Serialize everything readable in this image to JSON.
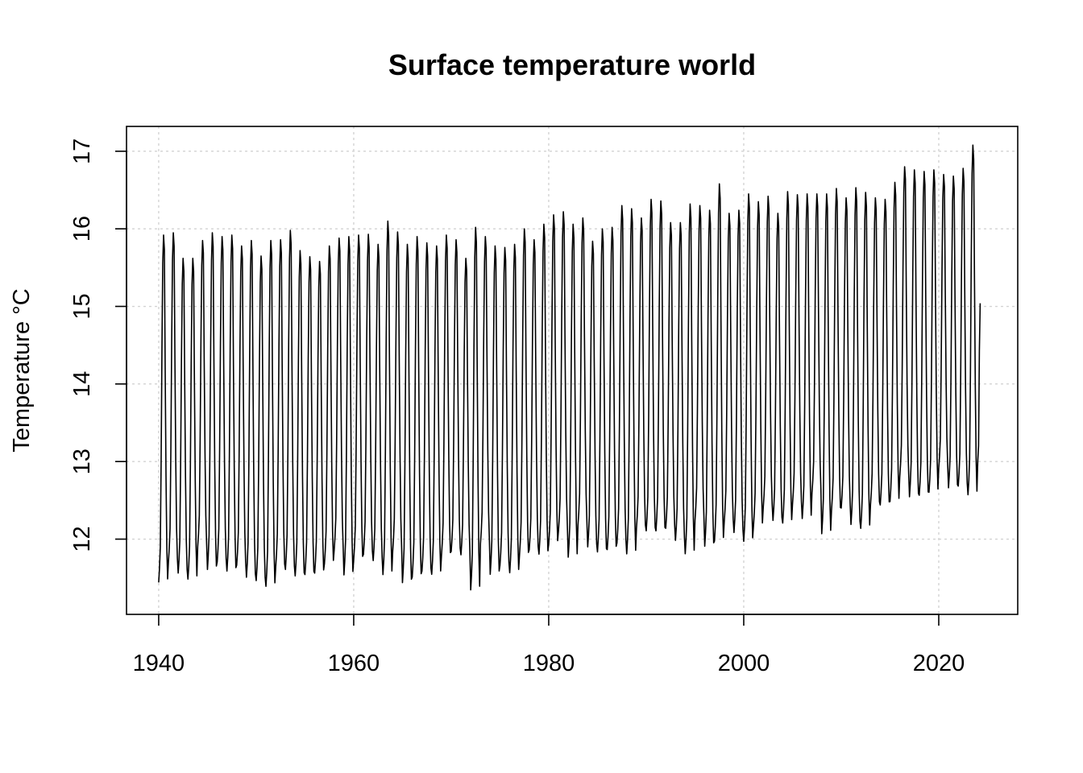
{
  "chart_data": {
    "type": "line",
    "title": "Surface temperature world",
    "xlabel": "",
    "ylabel": "Temperature °C",
    "xlim": [
      1936.7,
      2028.1
    ],
    "ylim": [
      11.03,
      17.32
    ],
    "x_ticks": [
      1940,
      1960,
      1980,
      2000,
      2020
    ],
    "y_ticks": [
      12,
      13,
      14,
      15,
      16,
      17
    ],
    "grid": true,
    "legend": "none",
    "series_color": "#000000",
    "annual": {
      "year": [
        1940,
        1941,
        1942,
        1943,
        1944,
        1945,
        1946,
        1947,
        1948,
        1949,
        1950,
        1951,
        1952,
        1953,
        1954,
        1955,
        1956,
        1957,
        1958,
        1959,
        1960,
        1961,
        1962,
        1963,
        1964,
        1965,
        1966,
        1967,
        1968,
        1969,
        1970,
        1971,
        1972,
        1973,
        1974,
        1975,
        1976,
        1977,
        1978,
        1979,
        1980,
        1981,
        1982,
        1983,
        1984,
        1985,
        1986,
        1987,
        1988,
        1989,
        1990,
        1991,
        1992,
        1993,
        1994,
        1995,
        1996,
        1997,
        1998,
        1999,
        2000,
        2001,
        2002,
        2003,
        2004,
        2005,
        2006,
        2007,
        2008,
        2009,
        2010,
        2011,
        2012,
        2013,
        2014,
        2015,
        2016,
        2017,
        2018,
        2019,
        2020,
        2021,
        2022,
        2023,
        2024
      ],
      "max_c": [
        15.92,
        15.95,
        15.62,
        15.62,
        15.85,
        15.95,
        15.9,
        15.92,
        15.78,
        15.85,
        15.65,
        15.85,
        15.86,
        15.98,
        15.72,
        15.64,
        15.58,
        15.78,
        15.88,
        15.9,
        15.92,
        15.93,
        15.8,
        16.1,
        15.96,
        15.8,
        15.9,
        15.82,
        15.78,
        15.92,
        15.86,
        15.62,
        16.02,
        15.9,
        15.78,
        15.76,
        15.8,
        16.0,
        15.86,
        16.06,
        16.18,
        16.22,
        16.06,
        16.14,
        15.84,
        16.0,
        16.02,
        16.3,
        16.26,
        16.14,
        16.38,
        16.36,
        16.08,
        16.08,
        16.32,
        16.3,
        16.24,
        16.58,
        16.2,
        16.24,
        16.45,
        16.35,
        16.42,
        16.2,
        16.48,
        16.44,
        16.45,
        16.45,
        16.45,
        16.52,
        16.4,
        16.53,
        16.47,
        16.4,
        16.38,
        16.6,
        16.8,
        16.76,
        16.74,
        16.76,
        16.7,
        16.68,
        16.78,
        17.08,
        null
      ],
      "min_c": [
        11.35,
        11.62,
        11.48,
        11.4,
        11.82,
        11.52,
        11.62,
        11.5,
        11.58,
        11.42,
        11.38,
        11.3,
        11.55,
        11.52,
        11.44,
        11.46,
        11.48,
        11.6,
        11.78,
        11.45,
        11.65,
        11.72,
        11.64,
        11.45,
        11.76,
        11.35,
        11.42,
        11.5,
        11.46,
        11.7,
        11.76,
        11.72,
        11.25,
        11.86,
        11.46,
        11.58,
        11.48,
        11.7,
        11.78,
        11.72,
        11.85,
        12.02,
        11.68,
        12.1,
        11.82,
        11.75,
        11.78,
        11.86,
        11.72,
        12.06,
        12.02,
        12.02,
        12.06,
        11.9,
        11.72,
        12.16,
        11.82,
        11.88,
        12.14,
        12.0,
        11.88,
        12.08,
        12.32,
        12.16,
        12.12,
        12.36,
        12.18,
        12.52,
        11.98,
        12.28,
        12.32,
        12.1,
        12.05,
        12.36,
        12.36,
        12.4,
        12.72,
        12.46,
        12.48,
        12.52,
        12.84,
        12.58,
        12.6,
        12.48,
        13.0
      ]
    }
  }
}
